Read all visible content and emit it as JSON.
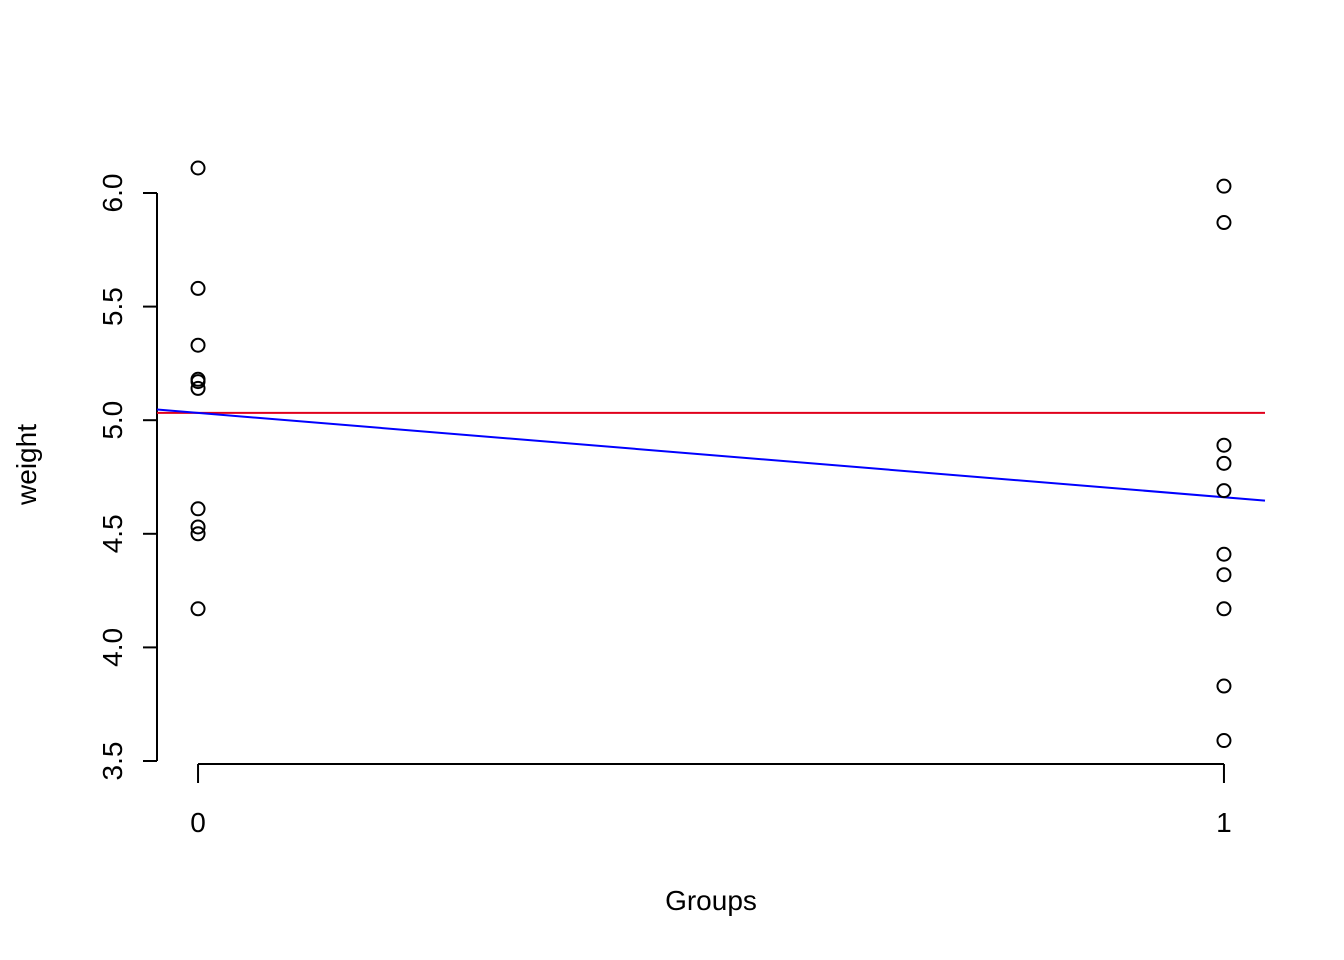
{
  "chart_data": {
    "type": "scatter",
    "title": "",
    "xlabel": "Groups",
    "ylabel": "weight",
    "xlim": [
      -0.04,
      1.04
    ],
    "ylim": [
      3.5,
      6.11
    ],
    "x_ticks": [
      0,
      1
    ],
    "x_tick_labels": [
      "0",
      "1"
    ],
    "y_ticks": [
      3.5,
      4.0,
      4.5,
      5.0,
      5.5,
      6.0
    ],
    "y_tick_labels": [
      "3.5",
      "4.0",
      "4.5",
      "5.0",
      "5.5",
      "6.0"
    ],
    "grid": false,
    "series": [
      {
        "marker": "open-circle",
        "color": "#000000",
        "points": [
          {
            "x": 0,
            "y": 4.17
          },
          {
            "x": 0,
            "y": 5.58
          },
          {
            "x": 0,
            "y": 5.18
          },
          {
            "x": 0,
            "y": 6.11
          },
          {
            "x": 0,
            "y": 4.5
          },
          {
            "x": 0,
            "y": 4.61
          },
          {
            "x": 0,
            "y": 5.17
          },
          {
            "x": 0,
            "y": 4.53
          },
          {
            "x": 0,
            "y": 5.33
          },
          {
            "x": 0,
            "y": 5.14
          },
          {
            "x": 1,
            "y": 4.81
          },
          {
            "x": 1,
            "y": 4.17
          },
          {
            "x": 1,
            "y": 4.41
          },
          {
            "x": 1,
            "y": 3.59
          },
          {
            "x": 1,
            "y": 5.87
          },
          {
            "x": 1,
            "y": 3.83
          },
          {
            "x": 1,
            "y": 6.03
          },
          {
            "x": 1,
            "y": 4.89
          },
          {
            "x": 1,
            "y": 4.32
          },
          {
            "x": 1,
            "y": 4.69
          }
        ]
      }
    ],
    "lines": [
      {
        "kind": "horizontal",
        "color": "#e0001b",
        "y": 5.032
      },
      {
        "kind": "regression",
        "color": "#0000ff",
        "intercept": 5.032,
        "slope": -0.371
      }
    ]
  }
}
